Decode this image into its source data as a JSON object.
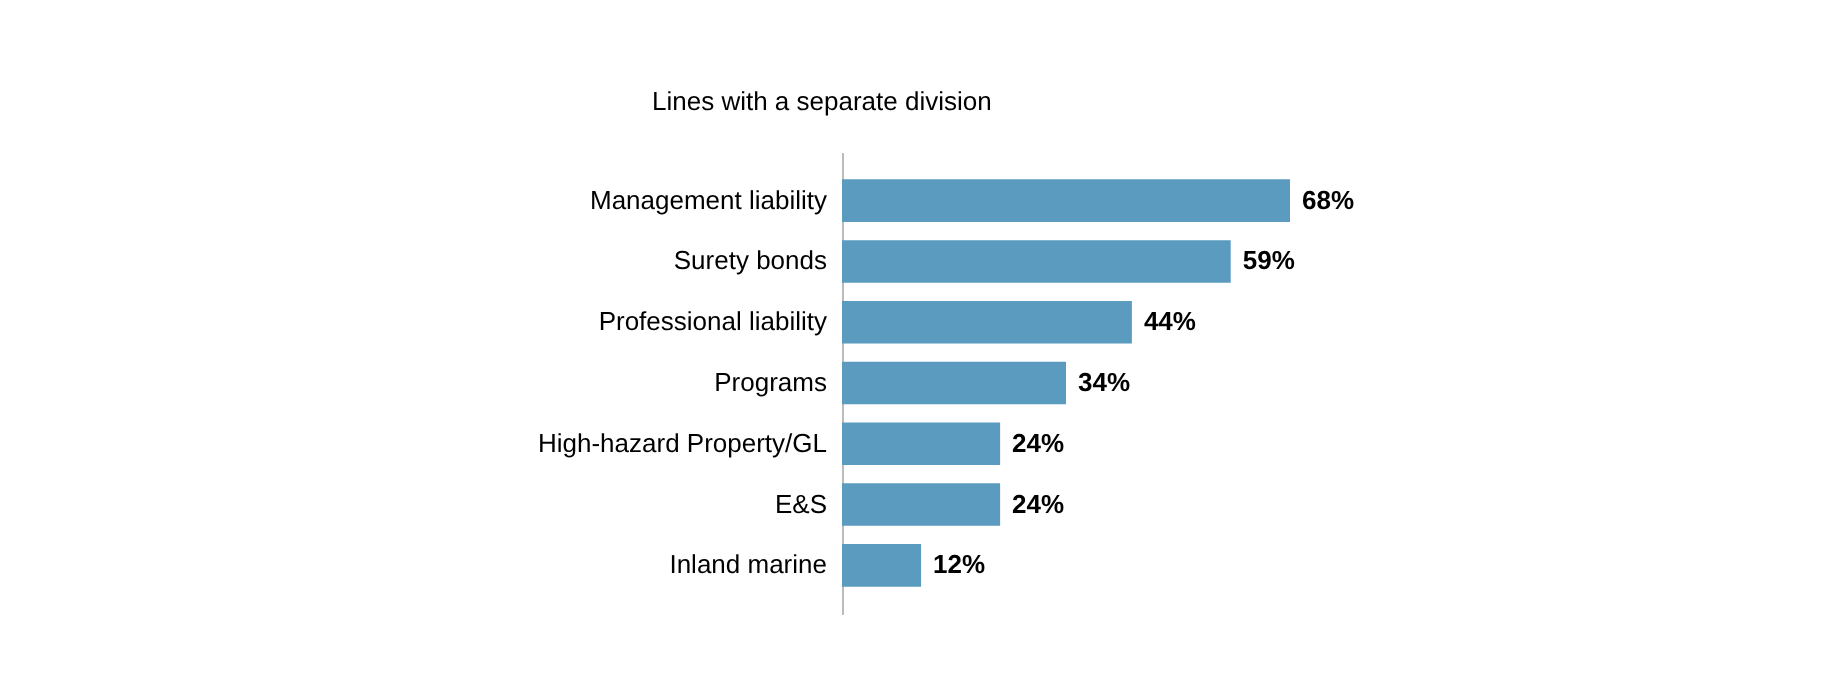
{
  "chart_data": {
    "type": "bar",
    "orientation": "horizontal",
    "title": "Lines with a separate division",
    "categories": [
      "Management liability",
      "Surety bonds",
      "Professional liability",
      "Programs",
      "High-hazard Property/GL",
      "E&S",
      "Inland marine"
    ],
    "values": [
      68,
      59,
      44,
      34,
      24,
      24,
      12
    ],
    "value_labels": [
      "68%",
      "59%",
      "44%",
      "34%",
      "24%",
      "24%",
      "12%"
    ],
    "color": "#5a9bbf",
    "grid": false
  }
}
